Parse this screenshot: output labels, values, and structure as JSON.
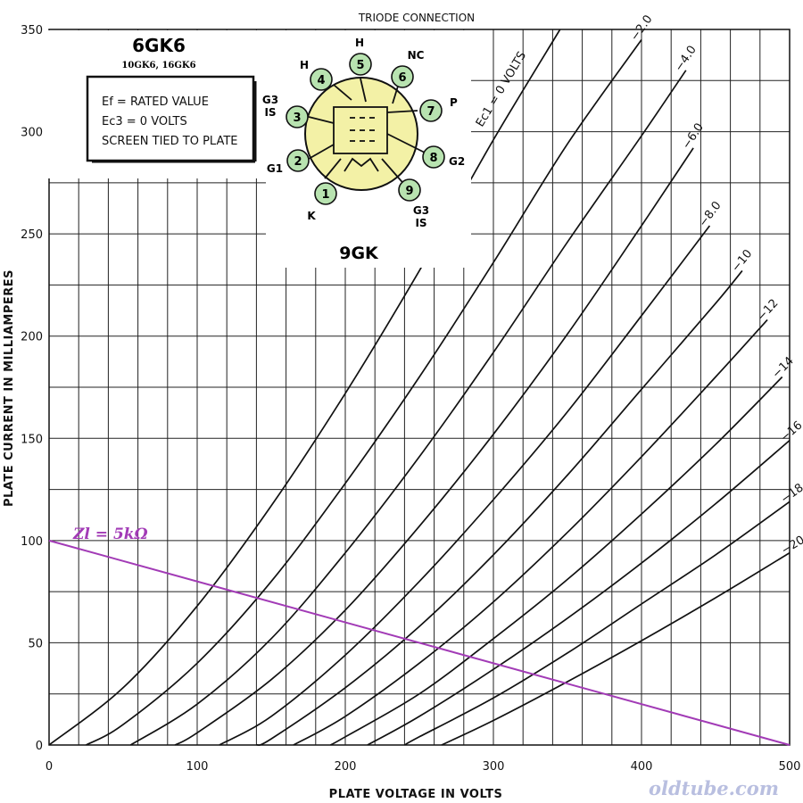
{
  "chart_data": {
    "type": "line",
    "title": "TRIODE CONNECTION",
    "xlabel": "PLATE VOLTAGE IN VOLTS",
    "ylabel": "PLATE CURRENT IN MILLIAMPERES",
    "xlim": [
      0,
      500
    ],
    "ylim": [
      0,
      350
    ],
    "x_ticks": [
      "0",
      "100",
      "200",
      "300",
      "400",
      "500"
    ],
    "y_ticks": [
      "0",
      "50",
      "100",
      "150",
      "200",
      "250",
      "300",
      "350"
    ],
    "grid": true,
    "series": [
      {
        "name": "Ec1 = 0 VOLTS",
        "bias": 0,
        "points": [
          [
            0,
            0
          ],
          [
            50,
            28
          ],
          [
            100,
            68
          ],
          [
            150,
            117
          ],
          [
            200,
            172
          ],
          [
            250,
            232
          ],
          [
            300,
            296
          ],
          [
            345,
            350
          ]
        ]
      },
      {
        "name": "−2.0",
        "bias": -2,
        "points": [
          [
            25,
            0
          ],
          [
            50,
            10
          ],
          [
            100,
            40
          ],
          [
            150,
            80
          ],
          [
            200,
            128
          ],
          [
            250,
            180
          ],
          [
            300,
            236
          ],
          [
            350,
            294
          ],
          [
            400,
            345
          ]
        ]
      },
      {
        "name": "−4.0",
        "bias": -4,
        "points": [
          [
            55,
            0
          ],
          [
            100,
            20
          ],
          [
            150,
            52
          ],
          [
            200,
            94
          ],
          [
            250,
            141
          ],
          [
            300,
            192
          ],
          [
            350,
            246
          ],
          [
            400,
            298
          ],
          [
            430,
            330
          ]
        ]
      },
      {
        "name": "−6.0",
        "bias": -6,
        "points": [
          [
            85,
            0
          ],
          [
            100,
            6
          ],
          [
            150,
            32
          ],
          [
            200,
            66
          ],
          [
            250,
            107
          ],
          [
            300,
            152
          ],
          [
            350,
            201
          ],
          [
            400,
            254
          ],
          [
            435,
            292
          ]
        ]
      },
      {
        "name": "−8.0",
        "bias": -8,
        "points": [
          [
            115,
            0
          ],
          [
            150,
            14
          ],
          [
            200,
            44
          ],
          [
            250,
            80
          ],
          [
            300,
            120
          ],
          [
            350,
            163
          ],
          [
            400,
            210
          ],
          [
            446,
            254
          ]
        ]
      },
      {
        "name": "−10",
        "bias": -10,
        "points": [
          [
            140,
            0
          ],
          [
            150,
            3
          ],
          [
            200,
            28
          ],
          [
            250,
            58
          ],
          [
            300,
            93
          ],
          [
            350,
            132
          ],
          [
            400,
            174
          ],
          [
            450,
            216
          ],
          [
            468,
            232
          ]
        ]
      },
      {
        "name": "−12",
        "bias": -12,
        "points": [
          [
            165,
            0
          ],
          [
            200,
            14
          ],
          [
            250,
            40
          ],
          [
            300,
            70
          ],
          [
            350,
            104
          ],
          [
            400,
            141
          ],
          [
            450,
            180
          ],
          [
            485,
            208
          ]
        ]
      },
      {
        "name": "−14",
        "bias": -14,
        "points": [
          [
            190,
            0
          ],
          [
            200,
            4
          ],
          [
            250,
            25
          ],
          [
            300,
            52
          ],
          [
            350,
            81
          ],
          [
            400,
            113
          ],
          [
            450,
            147
          ],
          [
            495,
            180
          ]
        ]
      },
      {
        "name": "−16",
        "bias": -16,
        "points": [
          [
            215,
            0
          ],
          [
            250,
            14
          ],
          [
            300,
            37
          ],
          [
            350,
            62
          ],
          [
            400,
            89
          ],
          [
            450,
            118
          ],
          [
            500,
            149
          ]
        ]
      },
      {
        "name": "−18",
        "bias": -18,
        "points": [
          [
            240,
            0
          ],
          [
            250,
            4
          ],
          [
            300,
            23
          ],
          [
            350,
            45
          ],
          [
            400,
            69
          ],
          [
            450,
            93
          ],
          [
            500,
            119
          ]
        ]
      },
      {
        "name": "−20",
        "bias": -20,
        "points": [
          [
            265,
            0
          ],
          [
            300,
            12
          ],
          [
            350,
            31
          ],
          [
            400,
            51
          ],
          [
            450,
            72
          ],
          [
            500,
            94
          ]
        ]
      }
    ],
    "load_line": {
      "label": "Zl = 5kΩ",
      "points": [
        [
          0,
          100
        ],
        [
          500,
          0
        ]
      ],
      "color": "#a23bb6"
    }
  },
  "tube": {
    "name": "6GK6",
    "variants": "10GK6,   16GK6"
  },
  "conditions": [
    "Ef = RATED VALUE",
    "Ec3 = 0 VOLTS",
    "SCREEN TIED TO PLATE"
  ],
  "base": {
    "name": "9GK",
    "pins": [
      {
        "num": "1",
        "label": "K"
      },
      {
        "num": "2",
        "label": "G1"
      },
      {
        "num": "3",
        "label": "G3 IS"
      },
      {
        "num": "4",
        "label": "H"
      },
      {
        "num": "5",
        "label": "H"
      },
      {
        "num": "6",
        "label": "NC"
      },
      {
        "num": "7",
        "label": "P"
      },
      {
        "num": "8",
        "label": "G2"
      },
      {
        "num": "9",
        "label": "G3 IS"
      }
    ],
    "pin_color": "#b8e3b0",
    "envelope_color": "#f3f1a6"
  },
  "watermark": "oldtube.com"
}
